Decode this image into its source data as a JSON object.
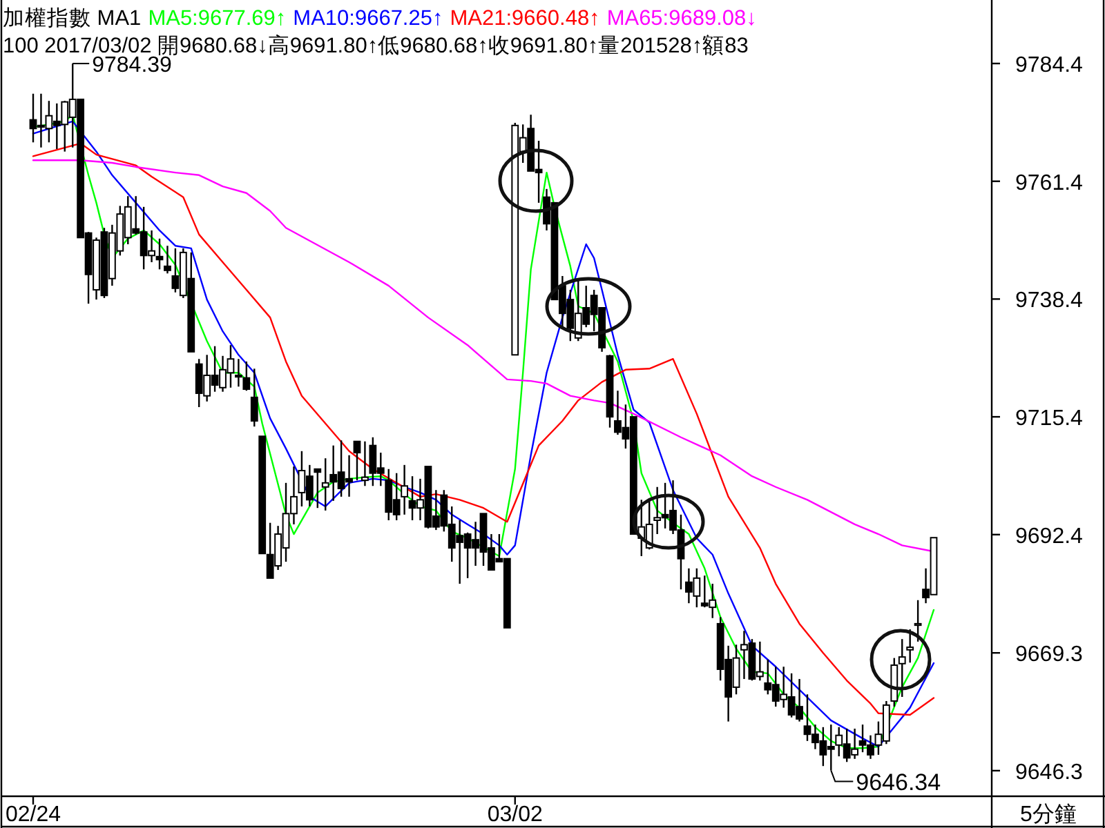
{
  "chart_data": {
    "type": "candlestick",
    "title": "加權指數 MA1",
    "subtitle": "100 2017/03/02 開9680.68↓高9691.80↑低9680.68↑收9691.80↑量201528↑額83",
    "color": "#000000",
    "legend": "top left",
    "xlabel": "5分鐘",
    "categories": [
      "02/24",
      null,
      null,
      null,
      null,
      null,
      null,
      null,
      null,
      null,
      null,
      null,
      null,
      null,
      null,
      null,
      null,
      null,
      null,
      null,
      null,
      null,
      null,
      null,
      null,
      null,
      null,
      null,
      null,
      null,
      null,
      null,
      null,
      null,
      null,
      null,
      null,
      null,
      null,
      null,
      null,
      null,
      null,
      null,
      null,
      null,
      null,
      null,
      null,
      null,
      null,
      null,
      null,
      null,
      null,
      null,
      null,
      null,
      null,
      null,
      null,
      "03/02",
      null,
      null,
      null,
      null,
      null,
      null,
      null,
      null,
      null,
      null,
      null,
      null,
      null,
      null,
      null,
      null,
      null,
      null,
      null,
      null,
      null,
      null,
      null,
      null,
      null,
      null,
      null,
      null,
      null,
      null,
      null,
      null,
      null,
      null,
      null,
      null,
      null,
      null,
      null,
      null,
      null,
      null,
      null,
      null,
      null,
      null,
      null,
      null,
      null,
      null,
      null,
      null,
      null
    ],
    "ohlc": [
      [
        9773.4,
        9778.5,
        9769.0,
        9771.7
      ],
      [
        9772.3,
        9778.5,
        9768.0,
        9772.0
      ],
      [
        9771.7,
        9777.1,
        9769.0,
        9774.2
      ],
      [
        9773.1,
        9776.6,
        9767.7,
        9772.3
      ],
      [
        9772.5,
        9777.1,
        9767.2,
        9776.9
      ],
      [
        9773.9,
        9784.39,
        9768.0,
        9777.4
      ],
      [
        9777.4,
        9777.4,
        9750.4,
        9750.4
      ],
      [
        9751.3,
        9751.5,
        9737.5,
        9743.2
      ],
      [
        9740.2,
        9750.4,
        9738.3,
        9749.9
      ],
      [
        9751.5,
        9752.3,
        9738.6,
        9739.1
      ],
      [
        9742.4,
        9752.9,
        9741.0,
        9751.3
      ],
      [
        9747.8,
        9756.6,
        9746.9,
        9755.0
      ],
      [
        9750.4,
        9758.5,
        9749.1,
        9756.4
      ],
      [
        9752.1,
        9758.5,
        9751.0,
        9751.3
      ],
      [
        9751.5,
        9756.4,
        9744.2,
        9746.9
      ],
      [
        9746.9,
        9751.8,
        9745.6,
        9747.8
      ],
      [
        9746.7,
        9750.2,
        9744.2,
        9746.1
      ],
      [
        9744.8,
        9748.8,
        9743.4,
        9744.0
      ],
      [
        9742.9,
        9748.3,
        9739.7,
        9740.5
      ],
      [
        9739.1,
        9748.3,
        9738.6,
        9747.5
      ],
      [
        9742.4,
        9747.5,
        9728.1,
        9728.1
      ],
      [
        9725.7,
        9726.7,
        9717.3,
        9720.0
      ],
      [
        9719.5,
        9727.5,
        9718.4,
        9723.5
      ],
      [
        9723.5,
        9729.2,
        9720.3,
        9721.6
      ],
      [
        9721.1,
        9727.3,
        9720.3,
        9724.6
      ],
      [
        9724.0,
        9729.4,
        9721.1,
        9726.7
      ],
      [
        9723.5,
        9726.7,
        9721.3,
        9723.2
      ],
      [
        9723.0,
        9726.2,
        9720.5,
        9720.8
      ],
      [
        9719.2,
        9724.8,
        9713.5,
        9714.6
      ],
      [
        9711.6,
        9711.6,
        9688.7,
        9688.7
      ],
      [
        9688.5,
        9694.7,
        9683.9,
        9683.9
      ],
      [
        9686.3,
        9694.1,
        9685.5,
        9692.5
      ],
      [
        9689.8,
        9702.5,
        9687.1,
        9696.5
      ],
      [
        9696.5,
        9705.7,
        9694.4,
        9699.8
      ],
      [
        9700.6,
        9708.7,
        9697.9,
        9704.9
      ],
      [
        9703.8,
        9706.0,
        9697.9,
        9699.2
      ],
      [
        9705.2,
        9705.2,
        9697.6,
        9704.6
      ],
      [
        9701.7,
        9707.3,
        9697.1,
        9702.5
      ],
      [
        9704.1,
        9709.8,
        9699.0,
        9702.7
      ],
      [
        9704.6,
        9710.8,
        9699.8,
        9701.4
      ],
      [
        9703.3,
        9707.9,
        9699.8,
        9702.7
      ],
      [
        9710.6,
        9710.6,
        9703.0,
        9708.4
      ],
      [
        9703.0,
        9710.6,
        9701.9,
        9703.6
      ],
      [
        9709.8,
        9711.4,
        9701.9,
        9704.4
      ],
      [
        9705.4,
        9708.4,
        9701.9,
        9704.4
      ],
      [
        9703.0,
        9705.2,
        9695.2,
        9696.8
      ],
      [
        9699.2,
        9704.4,
        9695.2,
        9696.3
      ],
      [
        9699.8,
        9706.0,
        9696.3,
        9701.9
      ],
      [
        9699.0,
        9703.8,
        9695.2,
        9697.6
      ],
      [
        9697.6,
        9703.3,
        9695.2,
        9699.2
      ],
      [
        9705.7,
        9705.7,
        9693.6,
        9693.9
      ],
      [
        9696.0,
        9701.1,
        9693.3,
        9693.9
      ],
      [
        9700.1,
        9701.1,
        9693.0,
        9694.1
      ],
      [
        9694.4,
        9697.9,
        9687.1,
        9689.8
      ],
      [
        9692.2,
        9695.2,
        9682.8,
        9690.9
      ],
      [
        9692.5,
        9692.8,
        9683.9,
        9689.8
      ],
      [
        9691.4,
        9694.9,
        9686.3,
        9689.8
      ],
      [
        9696.5,
        9696.5,
        9686.3,
        9689.0
      ],
      [
        9689.8,
        9692.5,
        9685.5,
        9685.5
      ],
      [
        9687.7,
        9692.5,
        9687.1,
        9687.1
      ],
      [
        9687.7,
        9687.7,
        9674.2,
        9674.2
      ],
      [
        9727.5,
        9772.8,
        9727.5,
        9772.3
      ],
      [
        9767.2,
        9772.5,
        9765.0,
        9769.9
      ],
      [
        9771.7,
        9774.4,
        9763.4,
        9763.4
      ],
      [
        9763.7,
        9769.3,
        9757.2,
        9763.1
      ],
      [
        9758.3,
        9759.9,
        9751.8,
        9753.1
      ],
      [
        9757.2,
        9757.2,
        9738.3,
        9738.3
      ],
      [
        9741.0,
        9742.9,
        9732.9,
        9735.6
      ],
      [
        9738.3,
        9740.2,
        9730.2,
        9732.7
      ],
      [
        9730.8,
        9742.1,
        9730.2,
        9735.6
      ],
      [
        9736.7,
        9741.0,
        9732.9,
        9733.5
      ],
      [
        9739.1,
        9740.2,
        9732.1,
        9735.4
      ],
      [
        9736.7,
        9736.7,
        9728.1,
        9728.9
      ],
      [
        9727.3,
        9727.5,
        9713.3,
        9715.4
      ],
      [
        9714.6,
        9720.5,
        9711.9,
        9712.4
      ],
      [
        9713.3,
        9717.8,
        9709.2,
        9711.1
      ],
      [
        9715.4,
        9715.4,
        9692.5,
        9692.5
      ],
      [
        9691.7,
        9699.2,
        9688.2,
        9693.9
      ],
      [
        9689.8,
        9699.0,
        9689.5,
        9694.4
      ],
      [
        9695.2,
        9701.7,
        9692.5,
        9695.7
      ],
      [
        9696.3,
        9702.5,
        9693.6,
        9695.7
      ],
      [
        9697.1,
        9703.0,
        9692.5,
        9693.3
      ],
      [
        9693.3,
        9696.3,
        9681.7,
        9687.7
      ],
      [
        9683.1,
        9685.8,
        9679.0,
        9681.2
      ],
      [
        9680.4,
        9685.8,
        9678.2,
        9683.9
      ],
      [
        9679.0,
        9684.4,
        9678.2,
        9678.5
      ],
      [
        9678.2,
        9682.8,
        9676.1,
        9679.6
      ],
      [
        9675.0,
        9676.3,
        9663.9,
        9666.1
      ],
      [
        9668.0,
        9670.7,
        9655.9,
        9660.7
      ],
      [
        9662.6,
        9670.9,
        9661.2,
        9668.3
      ],
      [
        9669.9,
        9673.6,
        9664.2,
        9670.9
      ],
      [
        9671.2,
        9672.0,
        9663.9,
        9664.2
      ],
      [
        9664.7,
        9671.5,
        9663.9,
        9665.6
      ],
      [
        9663.4,
        9668.0,
        9661.2,
        9662.1
      ],
      [
        9663.1,
        9666.6,
        9658.8,
        9659.9
      ],
      [
        9660.2,
        9666.6,
        9658.6,
        9661.2
      ],
      [
        9660.7,
        9665.3,
        9656.7,
        9657.2
      ],
      [
        9658.8,
        9664.2,
        9655.9,
        9656.4
      ],
      [
        9655.0,
        9661.2,
        9652.1,
        9653.4
      ],
      [
        9653.4,
        9655.3,
        9650.5,
        9651.8
      ],
      [
        9652.1,
        9654.8,
        9647.2,
        9649.4
      ],
      [
        9651.0,
        9655.3,
        9646.34,
        9650.5
      ],
      [
        9651.3,
        9654.8,
        9649.1,
        9653.2
      ],
      [
        9651.5,
        9654.5,
        9648.0,
        9648.8
      ],
      [
        9649.4,
        9654.5,
        9648.6,
        9650.5
      ],
      [
        9652.1,
        9655.3,
        9649.9,
        9651.3
      ],
      [
        9651.3,
        9653.2,
        9648.6,
        9649.4
      ],
      [
        9651.3,
        9655.9,
        9649.4,
        9653.4
      ],
      [
        9652.1,
        9659.9,
        9651.5,
        9659.1
      ],
      [
        9659.9,
        9668.3,
        9658.8,
        9666.9
      ],
      [
        9667.2,
        9672.0,
        9660.7,
        9668.5
      ],
      [
        9669.9,
        9673.9,
        9667.4,
        9670.4
      ],
      [
        9674.7,
        9679.6,
        9671.5,
        9675.0
      ],
      [
        9681.7,
        9685.8,
        9679.0,
        9680.1
      ],
      [
        9680.68,
        9691.8,
        9680.68,
        9691.8
      ]
    ],
    "series": [
      {
        "name": "MA5:9677.69↑",
        "type": "line",
        "color": "#00ff00",
        "values": [
          9772.0,
          null,
          9772.5,
          null,
          9773.1,
          9774.4,
          null,
          9762.6,
          9757.2,
          9751.0,
          9746.4,
          null,
          9750.2,
          null,
          9751.8,
          null,
          9749.1,
          null,
          9745.1,
          null,
          null,
          null,
          9730.2,
          null,
          9724.0,
          null,
          9724.0,
          null,
          9721.3,
          9714.1,
          null,
          null,
          9696.3,
          9692.5,
          null,
          null,
          9700.6,
          null,
          9702.7,
          null,
          9703.3,
          null,
          9703.6,
          null,
          9703.8,
          9703.0,
          null,
          9700.3,
          null,
          9697.9,
          null,
          9697.1,
          null,
          9693.0,
          null,
          9691.7,
          null,
          null,
          null,
          9688.2,
          null,
          9705.2,
          9724.0,
          9744.2,
          null,
          9763.1,
          9756.4,
          null,
          9744.8,
          9737.0,
          null,
          9735.6,
          null,
          null,
          9726.2,
          null,
          9714.6,
          9704.4,
          null,
          9697.1,
          null,
          9694.7,
          null,
          9692.5,
          null,
          9685.8,
          null,
          9676.3,
          null,
          9670.1,
          null,
          9665.6,
          null,
          9665.3,
          null,
          9661.2,
          null,
          9658.6,
          null,
          9654.8,
          null,
          9652.1,
          null,
          9650.7,
          null,
          9650.7,
          null,
          9651.0,
          null,
          null,
          9662.6,
          null,
          9668.3,
          null,
          9677.7
        ]
      },
      {
        "name": "MA10:9667.25↑",
        "type": "line",
        "color": "#0000ff",
        "values": [
          9770.7,
          null,
          null,
          null,
          null,
          9773.1,
          null,
          null,
          9767.2,
          null,
          9762.6,
          null,
          null,
          9757.2,
          null,
          null,
          9751.8,
          null,
          9748.8,
          null,
          9748.3,
          null,
          9738.3,
          null,
          9732.1,
          null,
          9727.5,
          null,
          9724.0,
          null,
          9715.1,
          null,
          9709.2,
          null,
          null,
          9699.8,
          null,
          9697.9,
          null,
          null,
          9702.5,
          null,
          null,
          9703.3,
          null,
          9703.0,
          null,
          9701.7,
          null,
          9700.6,
          null,
          9699.2,
          null,
          9696.3,
          null,
          9694.4,
          null,
          9692.5,
          null,
          9690.3,
          9688.5,
          9690.3,
          null,
          9707.9,
          null,
          9724.0,
          null,
          9734.8,
          null,
          null,
          9749.1,
          9746.4,
          9740.2,
          null,
          9727.5,
          null,
          9716.8,
          null,
          9714.3,
          null,
          null,
          9701.1,
          null,
          null,
          9691.7,
          null,
          9688.5,
          null,
          9680.9,
          null,
          null,
          9670.7,
          null,
          null,
          9666.6,
          null,
          null,
          9662.1,
          null,
          null,
          null,
          9656.1,
          null,
          null,
          null,
          9652.6,
          null,
          9651.0,
          null,
          9654.8,
          null,
          9658.6,
          null,
          null,
          9667.3
        ]
      },
      {
        "name": "MA21:9660.48↑",
        "type": "line",
        "color": "#ff0000",
        "values": [
          9766.3,
          null,
          null,
          null,
          null,
          null,
          9768.8,
          null,
          9766.6,
          null,
          null,
          null,
          null,
          9764.5,
          null,
          9762.3,
          null,
          null,
          null,
          9758.3,
          null,
          9751.0,
          null,
          null,
          9745.6,
          null,
          null,
          9740.2,
          null,
          null,
          9734.8,
          null,
          9726.2,
          null,
          9719.5,
          null,
          null,
          9714.1,
          null,
          null,
          9708.7,
          null,
          null,
          9705.2,
          null,
          null,
          9702.5,
          null,
          null,
          9699.8,
          null,
          9700.3,
          null,
          null,
          9699.2,
          null,
          null,
          9697.6,
          null,
          null,
          9694.9,
          null,
          null,
          null,
          9709.8,
          null,
          null,
          9714.6,
          null,
          9718.6,
          null,
          null,
          9722.2,
          null,
          null,
          9724.6,
          null,
          null,
          9724.8,
          null,
          null,
          9726.7,
          null,
          null,
          9716.0,
          null,
          9707.9,
          null,
          9699.8,
          null,
          null,
          null,
          9689.8,
          null,
          9682.8,
          null,
          null,
          9675.0,
          null,
          null,
          9669.3,
          null,
          null,
          9663.9,
          null,
          null,
          9659.4,
          9657.5,
          null,
          null,
          null,
          9657.2,
          null,
          null,
          9660.5
        ]
      },
      {
        "name": "MA65:9689.08↓",
        "type": "line",
        "color": "#ff00ff",
        "values": [
          9765.5,
          null,
          null,
          null,
          null,
          null,
          9765.5,
          null,
          null,
          null,
          9765.0,
          null,
          null,
          9764.2,
          null,
          null,
          null,
          null,
          9763.1,
          null,
          null,
          9762.6,
          null,
          null,
          9760.4,
          null,
          null,
          9759.1,
          null,
          null,
          9755.6,
          null,
          9752.3,
          null,
          null,
          null,
          null,
          null,
          null,
          null,
          9745.6,
          null,
          null,
          null,
          null,
          9741.0,
          null,
          null,
          null,
          null,
          9734.8,
          null,
          null,
          null,
          null,
          9729.4,
          null,
          9726.7,
          null,
          null,
          9722.7,
          null,
          null,
          9722.4,
          null,
          9721.9,
          null,
          null,
          9719.5,
          null,
          null,
          9718.6,
          null,
          9718.1,
          null,
          null,
          9716.0,
          null,
          null,
          null,
          null,
          null,
          9711.4,
          null,
          null,
          null,
          null,
          9707.9,
          null,
          null,
          null,
          9703.8,
          null,
          null,
          9701.7,
          null,
          null,
          null,
          9699.2,
          null,
          null,
          null,
          null,
          null,
          9694.4,
          null,
          null,
          9692.5,
          null,
          null,
          9690.3,
          null,
          null,
          null,
          9689.1
        ]
      }
    ],
    "ylim": [
      9641.3,
      9796.8
    ],
    "yticks": [
      9784.4,
      9761.4,
      9738.4,
      9715.4,
      9692.4,
      9669.3,
      9646.3
    ],
    "annotations": [
      "9784.39",
      "9646.34"
    ]
  }
}
